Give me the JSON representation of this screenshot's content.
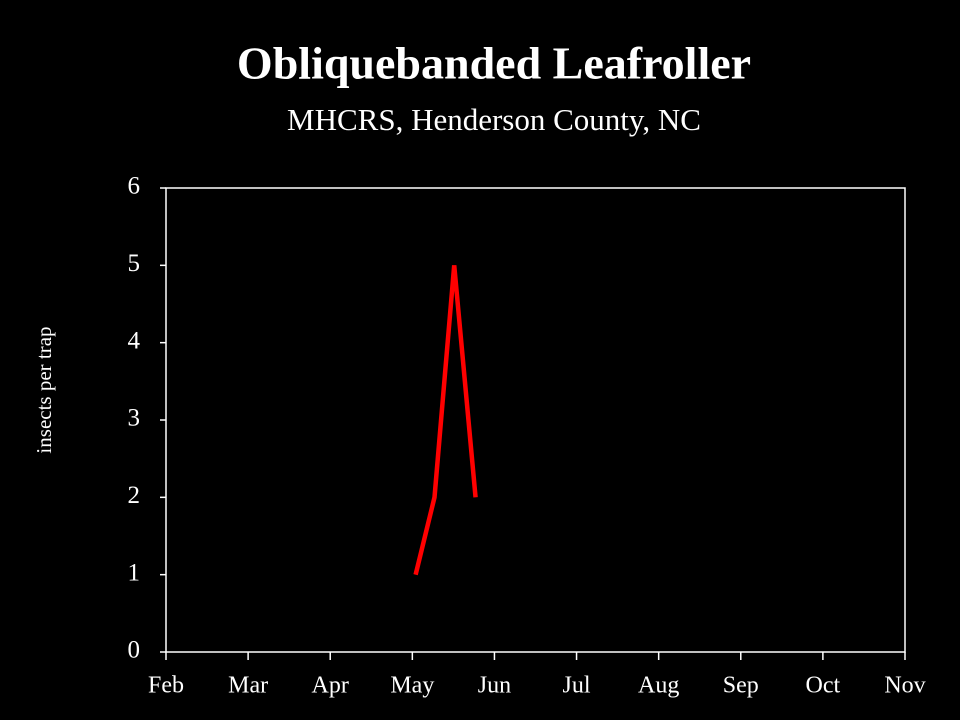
{
  "chart_data": {
    "type": "line",
    "title": "Obliquebanded Leafroller",
    "subtitle": "MHCRS, Henderson County, NC",
    "y_label": "insects per trap",
    "x": [
      5.04,
      5.27,
      5.51,
      5.77
    ],
    "series": [
      {
        "name": "Obliquebanded Leafroller",
        "color": "#ff0000",
        "values": [
          1,
          2,
          5,
          2
        ]
      }
    ],
    "xlim": [
      2,
      11
    ],
    "xticks": [
      {
        "value": 2,
        "label": "Feb"
      },
      {
        "value": 3,
        "label": "Mar"
      },
      {
        "value": 4,
        "label": "Apr"
      },
      {
        "value": 5,
        "label": "May"
      },
      {
        "value": 6,
        "label": "Jun"
      },
      {
        "value": 7,
        "label": "Jul"
      },
      {
        "value": 8,
        "label": "Aug"
      },
      {
        "value": 9,
        "label": "Sep"
      },
      {
        "value": 10,
        "label": "Oct"
      },
      {
        "value": 11,
        "label": "Nov"
      }
    ],
    "ylim": [
      0,
      6
    ],
    "yticks": [
      0,
      1,
      2,
      3,
      4,
      5,
      6
    ],
    "grid": false
  }
}
